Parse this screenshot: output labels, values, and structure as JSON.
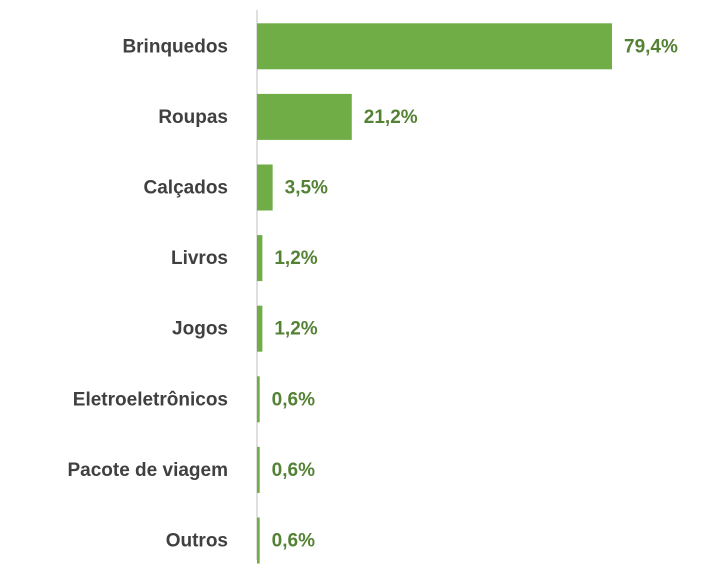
{
  "chart_data": {
    "type": "bar",
    "orientation": "horizontal",
    "categories": [
      "Brinquedos",
      "Roupas",
      "Calçados",
      "Livros",
      "Jogos",
      "Eletroeletrônicos",
      "Pacote de viagem",
      "Outros"
    ],
    "values": [
      79.4,
      21.2,
      3.5,
      1.2,
      1.2,
      0.6,
      0.6,
      0.6
    ],
    "value_labels": [
      "79,4%",
      "21,2%",
      "3,5%",
      "1,2%",
      "1,2%",
      "0,6%",
      "0,6%",
      "0,6%"
    ],
    "color": "#70ad47"
  }
}
